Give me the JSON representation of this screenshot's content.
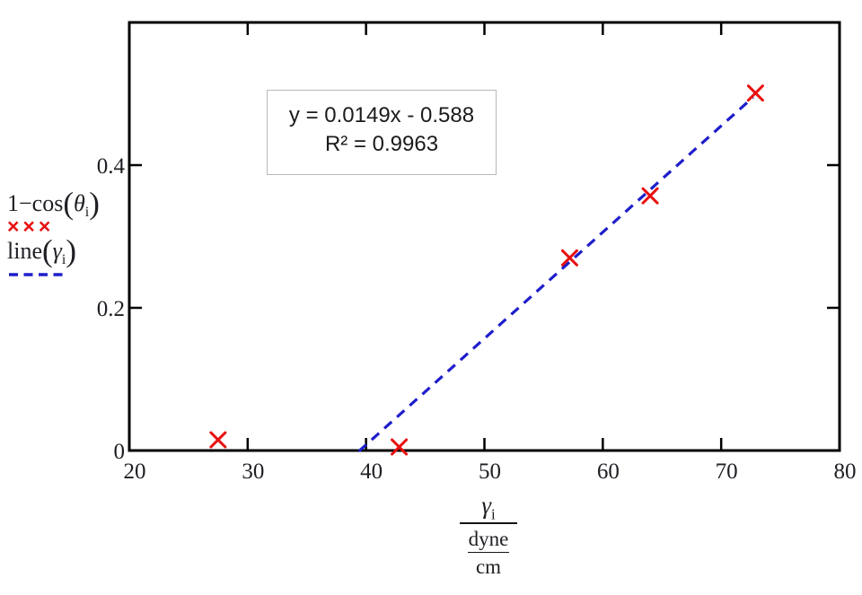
{
  "colors": {
    "frame": "#000000",
    "marker": "#e90f0f",
    "line": "#1e1ecb",
    "tick_text": "#1e1e24",
    "annotation_border": "#b9b9b9",
    "annotation_text": "#1b1b1b"
  },
  "legend": {
    "series1": {
      "text": "1−cos",
      "open": "(",
      "arg": "θ",
      "sub": "i",
      "close": ")",
      "marker": "×××"
    },
    "series2": {
      "text": "line",
      "open": "(",
      "arg": "γ",
      "sub": "i",
      "close": ")"
    }
  },
  "xaxis_title": {
    "numerator": "γ",
    "numerator_sub": "i",
    "unit_top": "dyne",
    "unit_bottom": "cm"
  },
  "chart_data": {
    "type": "scatter",
    "title": "",
    "xlabel": "γi (dyne/cm)",
    "ylabel": "1−cos(θi)",
    "xlim": [
      20,
      80
    ],
    "ylim": [
      0,
      0.6
    ],
    "x_ticks": [
      20,
      30,
      40,
      50,
      60,
      70,
      80
    ],
    "y_ticks": [
      0,
      0.2,
      0.4
    ],
    "y_tick_labels": [
      "0",
      "0.2",
      "0.4"
    ],
    "grid": false,
    "legend_position": "left",
    "series": [
      {
        "name": "1−cos(θi)",
        "type": "scatter",
        "marker": "x",
        "color": "#e90f0f",
        "points": [
          [
            27.5,
            0.015
          ],
          [
            42.8,
            0.005
          ],
          [
            57.2,
            0.27
          ],
          [
            64.0,
            0.357
          ],
          [
            72.9,
            0.501
          ]
        ]
      },
      {
        "name": "line(γi)",
        "type": "line",
        "style": "dashed",
        "color": "#1e1ecb",
        "slope": 0.0149,
        "intercept": -0.588,
        "x_start": 39.4,
        "x_end": 72.7
      }
    ],
    "annotation": {
      "equation": "y = 0.0149x - 0.588",
      "r_squared": "R² = 0.9963"
    }
  }
}
